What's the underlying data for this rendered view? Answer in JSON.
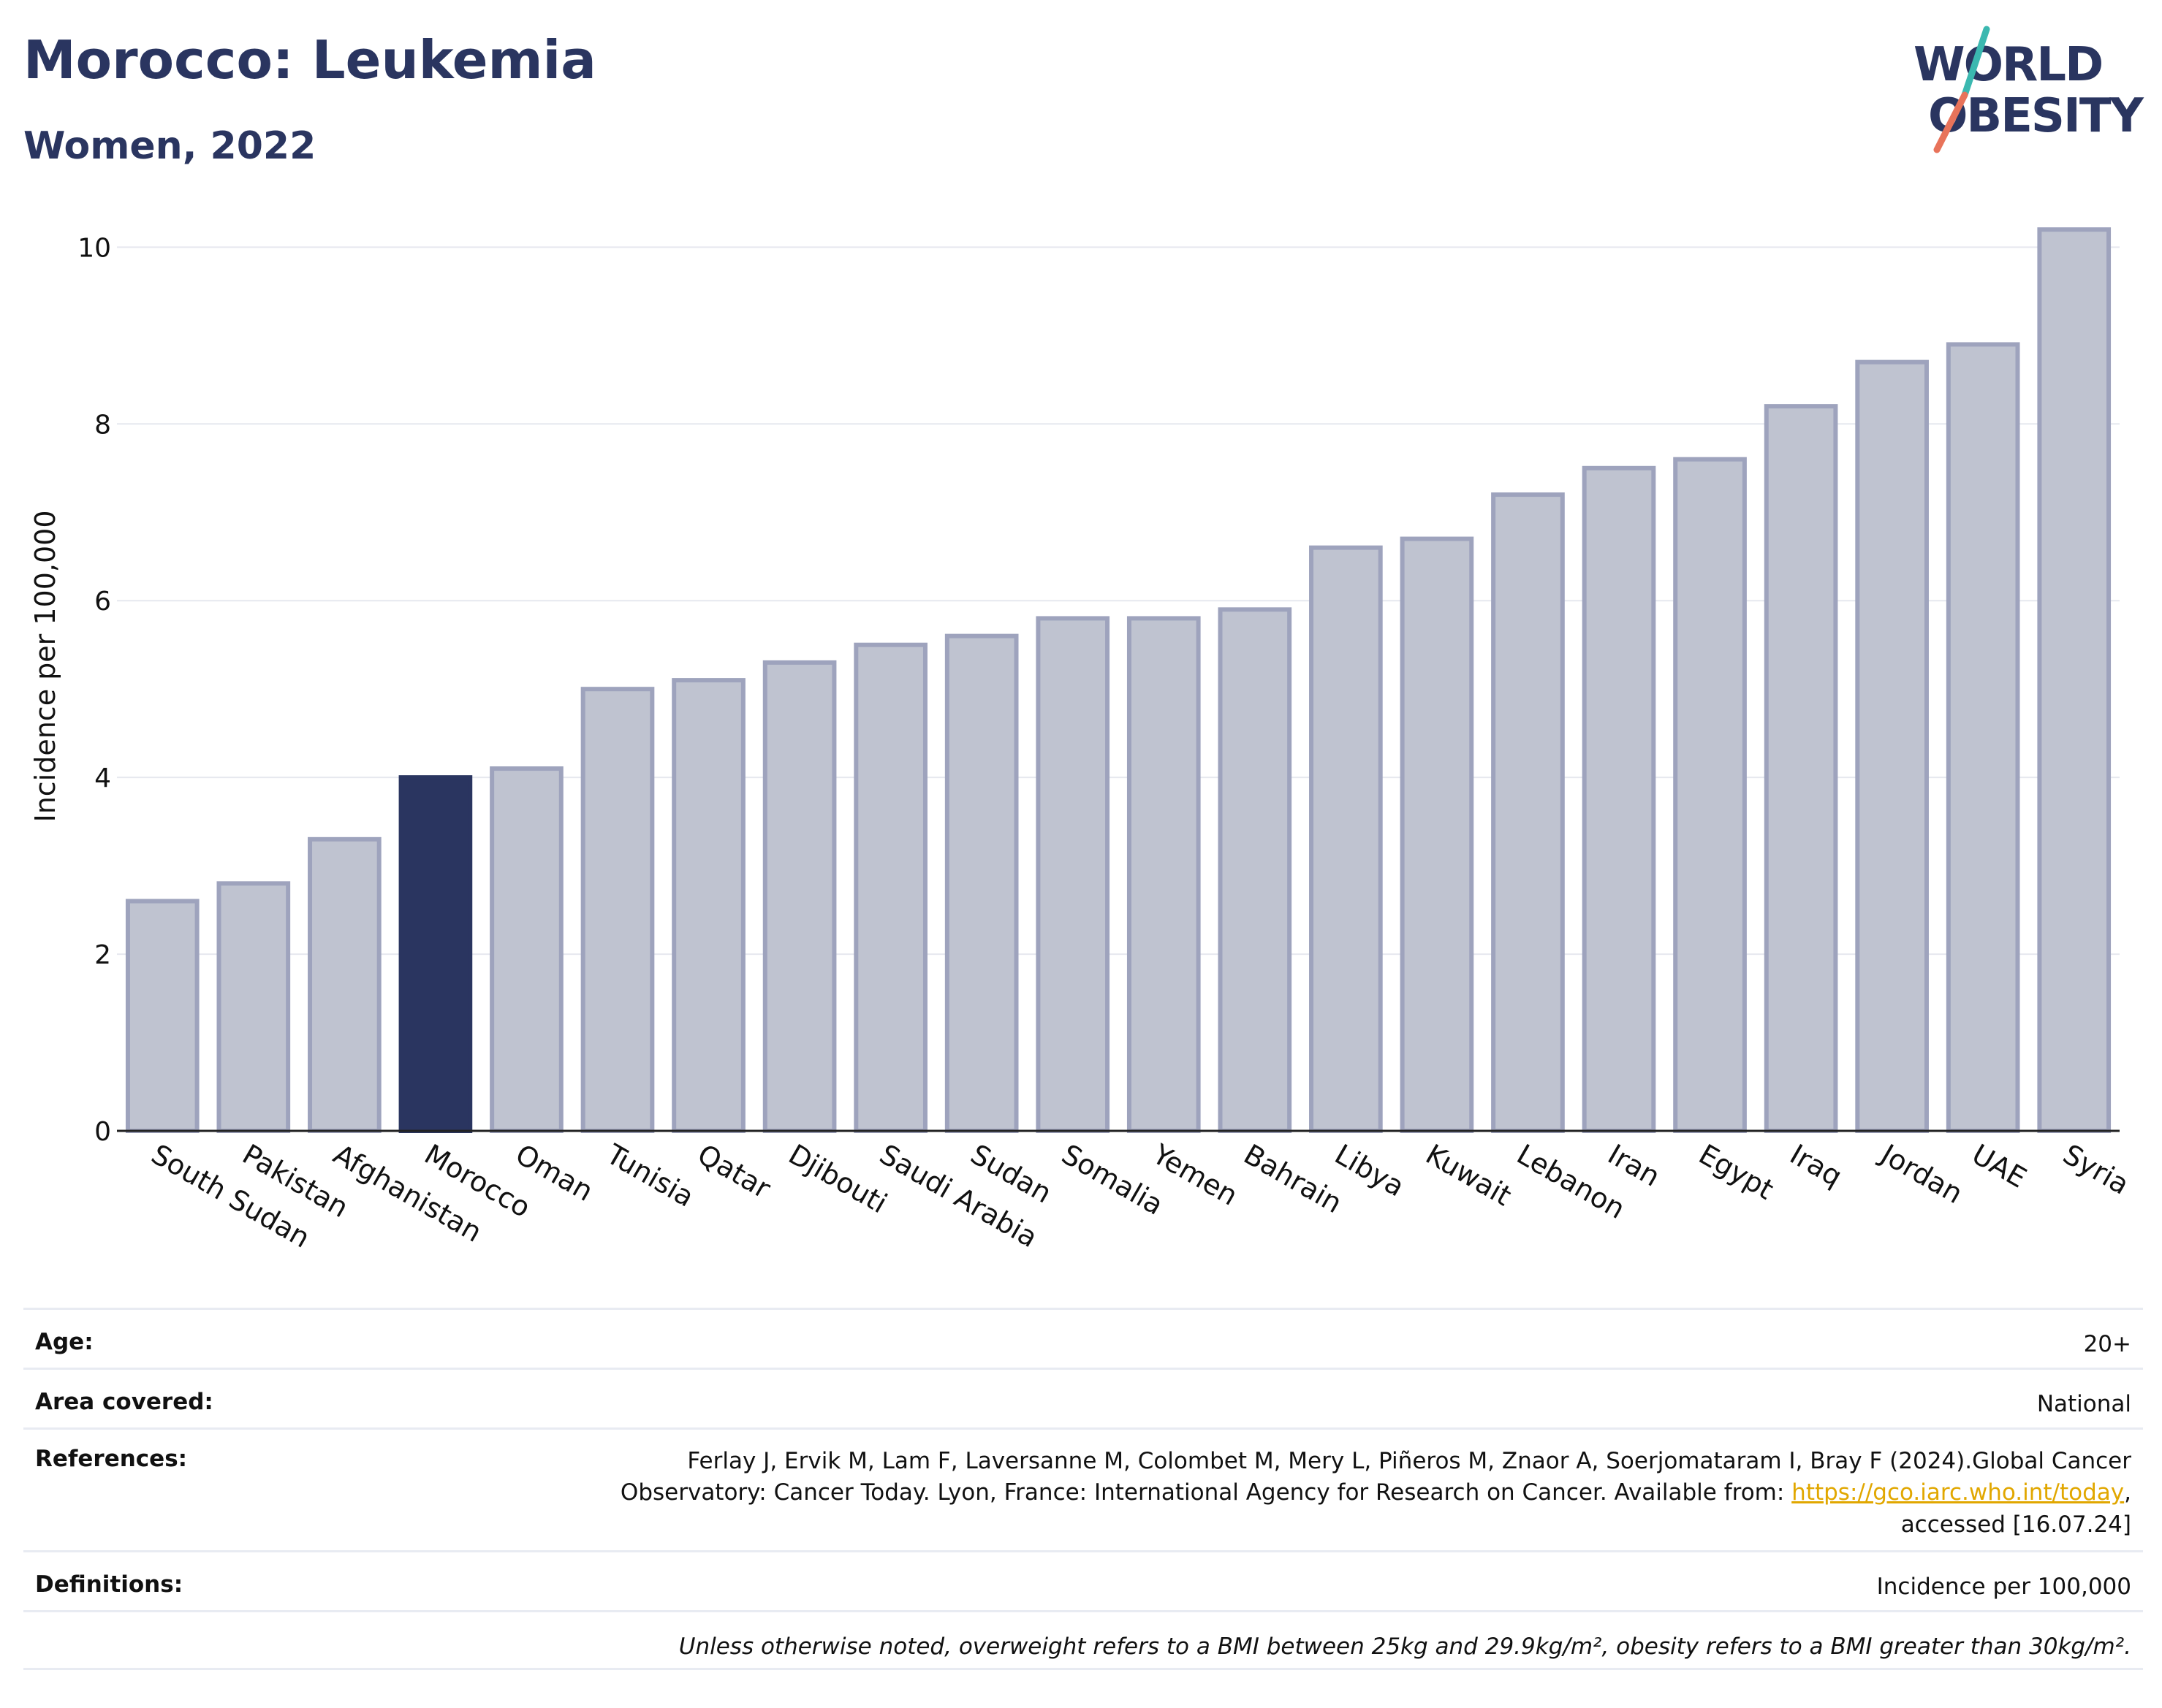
{
  "header": {
    "title": "Morocco: Leukemia",
    "subtitle": "Women, 2022"
  },
  "logo": {
    "line1": "WORLD",
    "line2": "OBESITY",
    "colors": {
      "text": "#2a3560",
      "slash_teal": "#3bb8b0",
      "slash_coral": "#e8735a"
    }
  },
  "chart_data": {
    "type": "bar",
    "title": "",
    "xlabel": "",
    "ylabel": "Incidence per 100,000",
    "ylim": [
      0,
      10.4
    ],
    "yticks": [
      0,
      2,
      4,
      6,
      8,
      10
    ],
    "grid": true,
    "highlight": "Morocco",
    "colors": {
      "bar": "#bfc3d0",
      "bar_border": "#9ea3bd",
      "highlight": "#2a3560"
    },
    "categories": [
      "South Sudan",
      "Pakistan",
      "Afghanistan",
      "Morocco",
      "Oman",
      "Tunisia",
      "Qatar",
      "Djibouti",
      "Saudi Arabia",
      "Sudan",
      "Somalia",
      "Yemen",
      "Bahrain",
      "Libya",
      "Kuwait",
      "Lebanon",
      "Iran",
      "Egypt",
      "Iraq",
      "Jordan",
      "UAE",
      "Syria"
    ],
    "values": [
      2.6,
      2.8,
      3.3,
      4.0,
      4.1,
      5.0,
      5.1,
      5.3,
      5.5,
      5.6,
      5.8,
      5.8,
      5.9,
      6.6,
      6.7,
      7.2,
      7.5,
      7.6,
      8.2,
      8.7,
      8.9,
      10.2
    ]
  },
  "footer": {
    "age_label": "Age:",
    "age_value": "20+",
    "area_label": "Area covered:",
    "area_value": "National",
    "references_label": "References:",
    "references_text_line1": "Ferlay J, Ervik M, Lam F, Laversanne M, Colombet M, Mery L, Piñeros M, Znaor A, Soerjomataram I, Bray F (2024).Global Cancer",
    "references_text_line2": "Observatory: Cancer Today. Lyon, France: International Agency for Research on Cancer. Available from:",
    "references_link": "https://gco.iarc.who.int/today",
    "references_text_line3": "accessed [16.07.24]",
    "definitions_label": "Definitions:",
    "definitions_value": "Incidence per 100,000",
    "note": "Unless otherwise noted, overweight refers to a BMI between 25kg and 29.9kg/m², obesity refers to a BMI greater than 30kg/m²."
  }
}
